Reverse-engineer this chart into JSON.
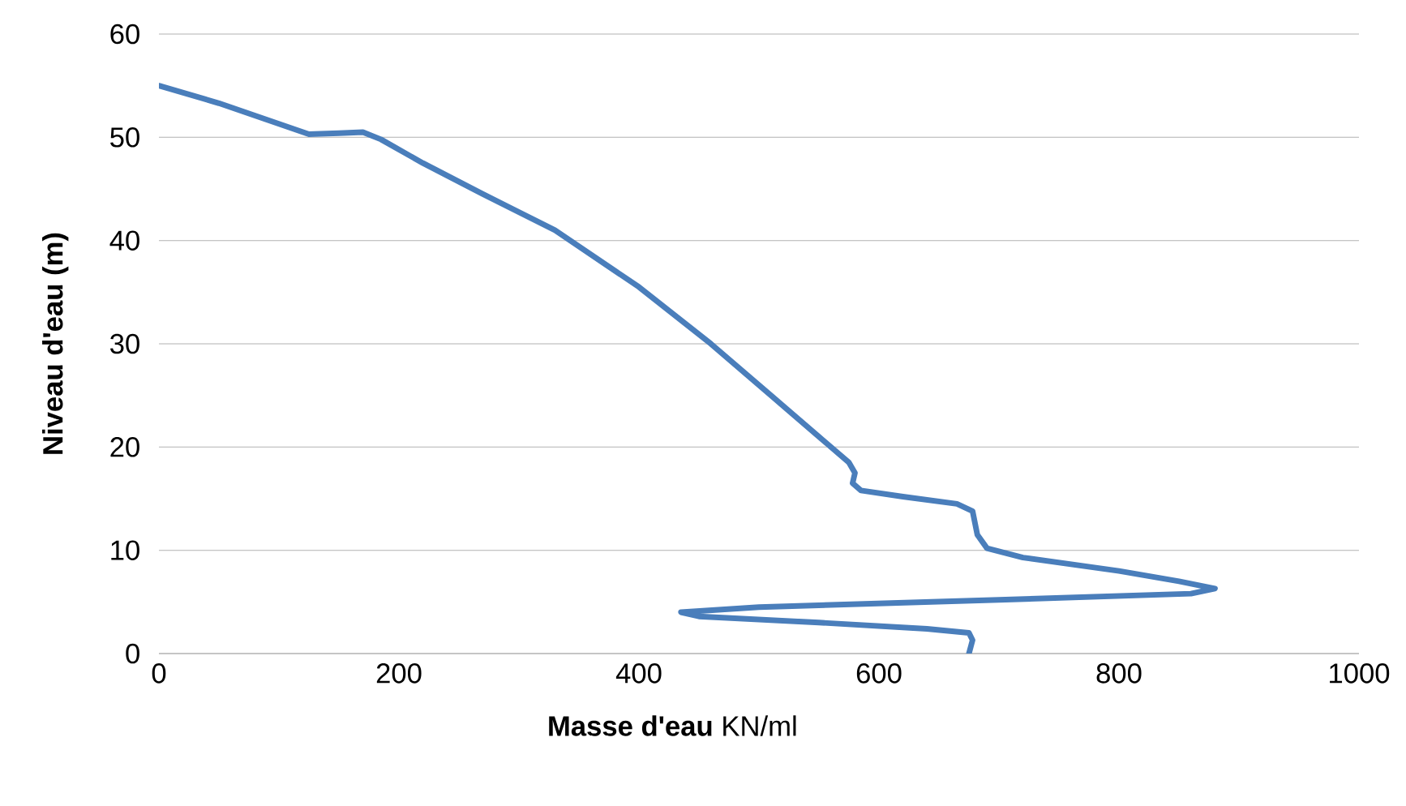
{
  "chart_data": {
    "type": "line",
    "xlabel": "**Masse d'eau** KN/ml",
    "ylabel": "Niveau d'eau (m)",
    "xlim": [
      0,
      1000
    ],
    "ylim": [
      0,
      60
    ],
    "xticks": [
      0,
      200,
      400,
      600,
      800,
      1000
    ],
    "yticks": [
      0,
      10,
      20,
      30,
      40,
      50,
      60
    ],
    "grid": "y",
    "line_style": "solid",
    "series": [
      {
        "color": "#4a7ebb",
        "x": [
          0,
          50,
          100,
          125,
          150,
          170,
          185,
          220,
          270,
          330,
          400,
          460,
          510,
          550,
          575,
          580,
          578,
          585,
          620,
          665,
          678,
          682,
          690,
          720,
          800,
          850,
          880,
          860,
          700,
          500,
          435,
          450,
          550,
          640,
          675,
          678,
          675
        ],
        "values": [
          55,
          53.3,
          51.3,
          50.3,
          50.4,
          50.5,
          49.8,
          47.5,
          44.5,
          41,
          35.5,
          30,
          25,
          21,
          18.5,
          17.5,
          16.5,
          15.8,
          15.2,
          14.5,
          13.8,
          11.5,
          10.2,
          9.3,
          8,
          7,
          6.3,
          5.8,
          5.2,
          4.5,
          4,
          3.6,
          3,
          2.4,
          2,
          1.3,
          0
        ]
      }
    ]
  }
}
